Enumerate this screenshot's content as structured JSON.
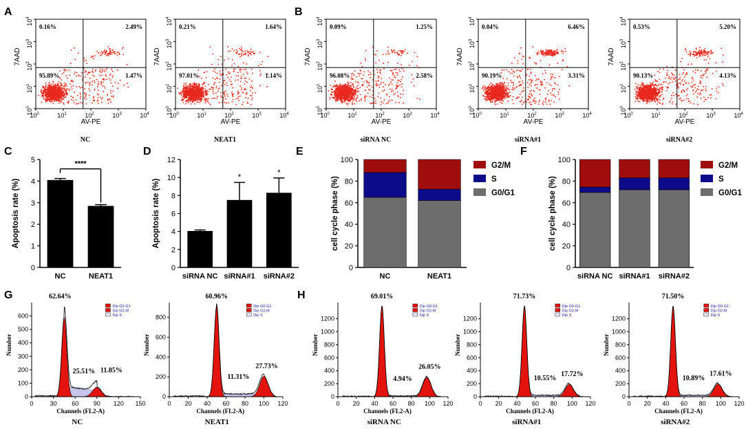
{
  "panel_letters": [
    "A",
    "B",
    "C",
    "D",
    "E",
    "F",
    "G",
    "H"
  ],
  "flow": {
    "xlabel": "AV-PE",
    "ylabel": "7AAD",
    "decades": [
      "10",
      "10",
      "10",
      "10",
      "10"
    ],
    "exps": [
      "0",
      "1",
      "2",
      "3",
      "4"
    ],
    "plots": [
      {
        "name": "NC",
        "q": [
          "0.16%",
          "2.49%",
          "95.89%",
          "1.47%"
        ]
      },
      {
        "name": "NEAT1",
        "q": [
          "0.21%",
          "1.64%",
          "97.01%",
          "1.14%"
        ]
      },
      {
        "name": "siRNA NC",
        "q": [
          "0.09%",
          "1.25%",
          "96.08%",
          "2.58%"
        ]
      },
      {
        "name": "siRNA#1",
        "q": [
          "0.04%",
          "6.46%",
          "90.19%",
          "3.31%"
        ]
      },
      {
        "name": "siRNA#2",
        "q": [
          "0.53%",
          "5.20%",
          "90.13%",
          "4.13%"
        ]
      }
    ]
  },
  "chart_data": [
    {
      "type": "bar",
      "panel": "C",
      "categories": [
        "NC",
        "NEAT1"
      ],
      "values": [
        4.05,
        2.85
      ],
      "errors": [
        0.07,
        0.06
      ],
      "ylabel": "Apoptosis rate (%)",
      "ylim": [
        0,
        5
      ],
      "yticks": [
        "0",
        "1",
        "2",
        "3",
        "4",
        "5"
      ],
      "significance": "****"
    },
    {
      "type": "bar",
      "panel": "D",
      "categories": [
        "siRNA NC",
        "siRNA#1",
        "siRNA#2"
      ],
      "values": [
        4.05,
        7.5,
        8.3
      ],
      "errors": [
        0.12,
        1.95,
        1.65
      ],
      "ylabel": "Apoptosis rate (%)",
      "ylim": [
        0,
        12
      ],
      "yticks": [
        "0",
        "2",
        "4",
        "6",
        "8",
        "10",
        "12"
      ],
      "significance": [
        "",
        "*",
        "*"
      ]
    },
    {
      "type": "bar",
      "stacked": true,
      "panel": "E",
      "categories": [
        "NC",
        "NEAT1"
      ],
      "series": [
        {
          "name": "G0/G1",
          "values": [
            65,
            62
          ],
          "color": "#6d6d6d"
        },
        {
          "name": "S",
          "values": [
            23,
            10.5
          ],
          "color": "#0c0c8a"
        },
        {
          "name": "G2/M",
          "values": [
            12,
            27.5
          ],
          "color": "#a00d0d"
        }
      ],
      "legend_order": [
        "G2/M",
        "S",
        "G0/G1"
      ],
      "ylabel": "cell cycle phase (%)",
      "ylim": [
        0,
        100
      ],
      "yticks": [
        "0",
        "20",
        "40",
        "60",
        "80",
        "100"
      ]
    },
    {
      "type": "bar",
      "stacked": true,
      "panel": "F",
      "categories": [
        "siRNA NC",
        "siRNA#1",
        "siRNA#2"
      ],
      "series": [
        {
          "name": "G0/G1",
          "values": [
            69.5,
            72,
            72
          ],
          "color": "#6d6d6d"
        },
        {
          "name": "S",
          "values": [
            5,
            11,
            11
          ],
          "color": "#0c0c8a"
        },
        {
          "name": "G2/M",
          "values": [
            25.5,
            17,
            17
          ],
          "color": "#a00d0d"
        }
      ],
      "legend_order": [
        "G2/M",
        "S",
        "G0/G1"
      ],
      "ylabel": "cell cycle phase (%)",
      "ylim": [
        0,
        100
      ],
      "yticks": [
        "0",
        "20",
        "40",
        "60",
        "80",
        "100"
      ]
    }
  ],
  "histograms": {
    "xlabel": "Channels (FL2-A)",
    "ylabel": "Number",
    "legend": [
      "Dip G0-G1",
      "Dip G2-M",
      "Dip S"
    ],
    "plots": [
      {
        "name": "NC",
        "xmax": 150,
        "xticks": [
          "0",
          "30",
          "60",
          "90",
          "120",
          "150"
        ],
        "ymax": 700,
        "yticks": [
          "0",
          "100",
          "200",
          "300",
          "400",
          "500",
          "600"
        ],
        "g1": "62.64%",
        "s": "25.51%",
        "g2": "11.85%"
      },
      {
        "name": "NEAT1",
        "xmax": 120,
        "xticks": [
          "0",
          "20",
          "40",
          "60",
          "80",
          "100",
          "120"
        ],
        "ymax": 950,
        "yticks": [
          "0",
          "200",
          "400",
          "600",
          "800"
        ],
        "g1": "60.96%",
        "s": "11.31%",
        "g2": "27.73%"
      },
      {
        "name": "siRNA NC",
        "xmax": 120,
        "xticks": [
          "0",
          "20",
          "40",
          "60",
          "80",
          "100",
          "120"
        ],
        "ymax": 1450,
        "yticks": [
          "0",
          "200",
          "400",
          "600",
          "800",
          "1000",
          "1200"
        ],
        "g1": "69.01%",
        "s": "4.94%",
        "g2": "26.05%"
      },
      {
        "name": "siRNA#1",
        "xmax": 120,
        "xticks": [
          "0",
          "20",
          "40",
          "60",
          "80",
          "100",
          "120"
        ],
        "ymax": 1450,
        "yticks": [
          "0",
          "200",
          "400",
          "600",
          "800",
          "1000",
          "1200"
        ],
        "g1": "71.73%",
        "s": "10.55%",
        "g2": "17.72%"
      },
      {
        "name": "siRNA#2",
        "xmax": 120,
        "xticks": [
          "0",
          "20",
          "40",
          "60",
          "80",
          "100",
          "120"
        ],
        "ymax": 1450,
        "yticks": [
          "0",
          "200",
          "400",
          "600",
          "800",
          "1000",
          "1200"
        ],
        "g1": "71.50%",
        "s": "10.89%",
        "g2": "17.61%"
      }
    ]
  }
}
